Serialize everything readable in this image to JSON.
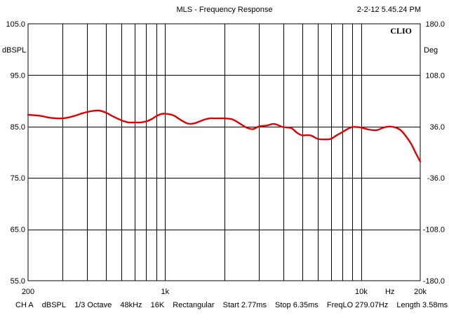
{
  "header": {
    "title": "MLS - Frequency Response",
    "timestamp": "2-2-12 5.45.24 PM",
    "brand": "CLIO"
  },
  "status": {
    "channel": "CH A",
    "unit": "dBSPL",
    "smoothing": "1/3 Octave",
    "sample_rate": "48kHz",
    "size": "16K",
    "window": "Rectangular",
    "start": "Start 2.77ms",
    "stop": "Stop 6.35ms",
    "freq_lo": "FreqLO 279.07Hz",
    "length": "Length 3.58ms"
  },
  "chart_data": {
    "type": "line",
    "title": "MLS - Frequency Response",
    "x_scale": "log",
    "xlim": [
      200,
      20000
    ],
    "x_tick_labels": [
      "200",
      "1k",
      "10k",
      "Hz",
      "20k"
    ],
    "ylim": [
      55,
      105
    ],
    "ylabel": "dBSPL",
    "y_tick_labels": [
      "105.0",
      "95.0",
      "85.0",
      "75.0",
      "65.0",
      "55.0"
    ],
    "y2lim": [
      -180,
      180
    ],
    "y2label": "Deg",
    "y2_tick_labels": [
      "180.0",
      "108.0",
      "36.0",
      "-36.0",
      "-108.0",
      "-180.0"
    ],
    "grid": true,
    "line_color": "#e00000",
    "series": [
      {
        "x": [
          200,
          230,
          260,
          300,
          340,
          380,
          420,
          460,
          500,
          540,
          600,
          650,
          700,
          750,
          800,
          850,
          900,
          950,
          1000,
          1100,
          1200,
          1300,
          1400,
          1500,
          1600,
          1700,
          1800,
          1900,
          2000,
          2200,
          2400,
          2600,
          2800,
          3000,
          3300,
          3600,
          4000,
          4400,
          4700,
          5000,
          5500,
          6000,
          6500,
          7000,
          7500,
          8000,
          8500,
          9000,
          9500,
          10000,
          11000,
          12000,
          13000,
          14000,
          15000,
          16000,
          17000,
          18000,
          19000,
          20000
        ],
        "y": [
          87.3,
          87.1,
          86.7,
          86.6,
          87.0,
          87.6,
          88.0,
          88.1,
          87.7,
          87.0,
          86.2,
          85.8,
          85.8,
          85.8,
          86.0,
          86.4,
          87.0,
          87.4,
          87.5,
          87.2,
          86.3,
          85.6,
          85.6,
          86.0,
          86.4,
          86.6,
          86.6,
          86.6,
          86.6,
          86.4,
          85.6,
          84.8,
          84.5,
          85.0,
          85.2,
          85.5,
          84.9,
          84.7,
          83.8,
          83.3,
          83.3,
          82.6,
          82.5,
          82.6,
          83.3,
          83.9,
          84.5,
          84.9,
          84.9,
          84.8,
          84.4,
          84.3,
          84.8,
          85.0,
          84.8,
          84.2,
          83.0,
          81.6,
          79.8,
          78.2
        ]
      }
    ]
  }
}
